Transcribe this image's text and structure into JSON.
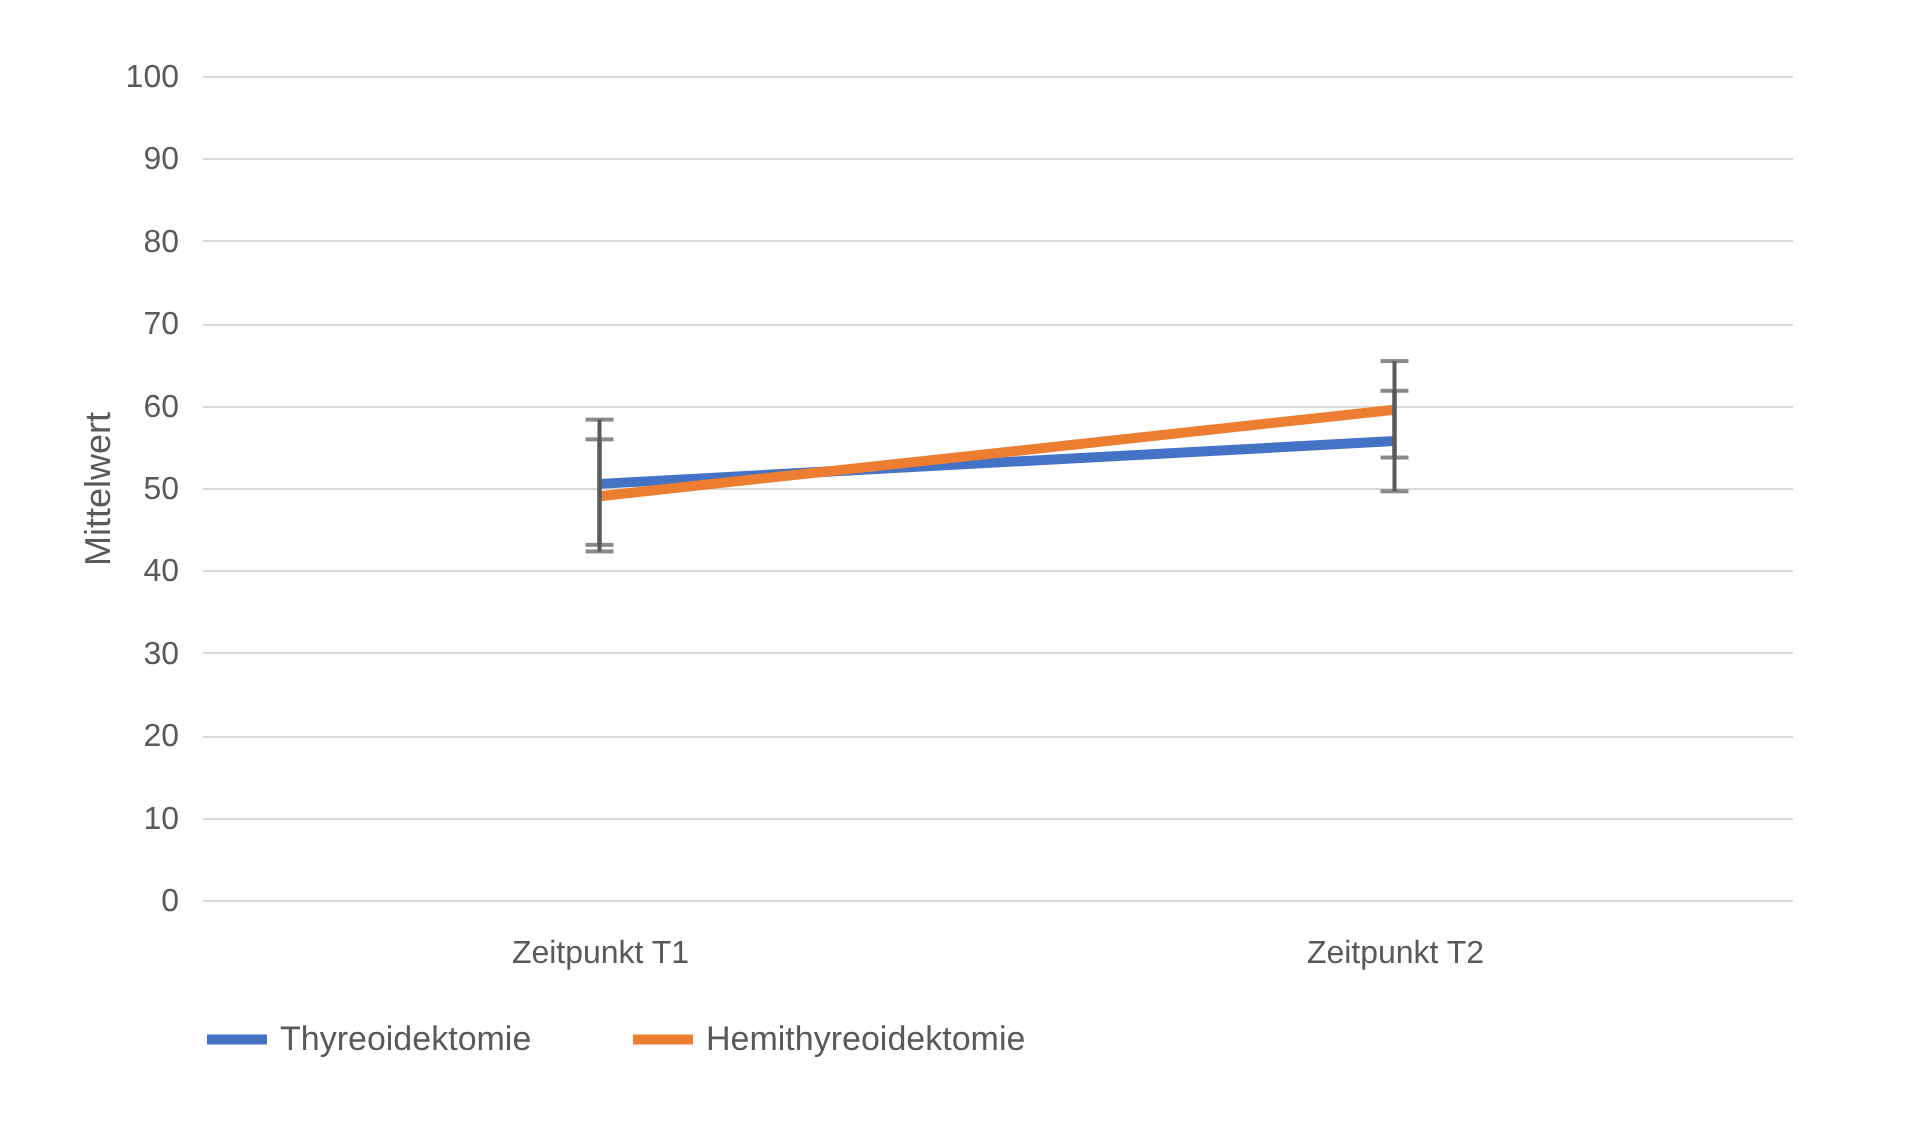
{
  "chart_data": {
    "type": "line",
    "ylabel": "Mittelwert",
    "categories": [
      "Zeitpunkt T1",
      "Zeitpunkt T2"
    ],
    "series": [
      {
        "name": "Thyreoidektomie",
        "color": "#4472c4",
        "values": [
          50.5,
          55.7
        ],
        "errors": [
          [
            42.3,
            58.3
          ],
          [
            49.6,
            61.8
          ]
        ]
      },
      {
        "name": "Hemithyreoidektomie",
        "color": "#ed7d31",
        "values": [
          49.0,
          59.5
        ],
        "errors": [
          [
            43.1,
            55.9
          ],
          [
            53.7,
            65.4
          ]
        ]
      }
    ],
    "ylim": [
      0,
      100
    ],
    "yticks": [
      0,
      10,
      20,
      30,
      40,
      50,
      60,
      70,
      80,
      90,
      100
    ],
    "grid": "y",
    "legend": "bottom",
    "marker": "none",
    "line_style": "solid"
  }
}
